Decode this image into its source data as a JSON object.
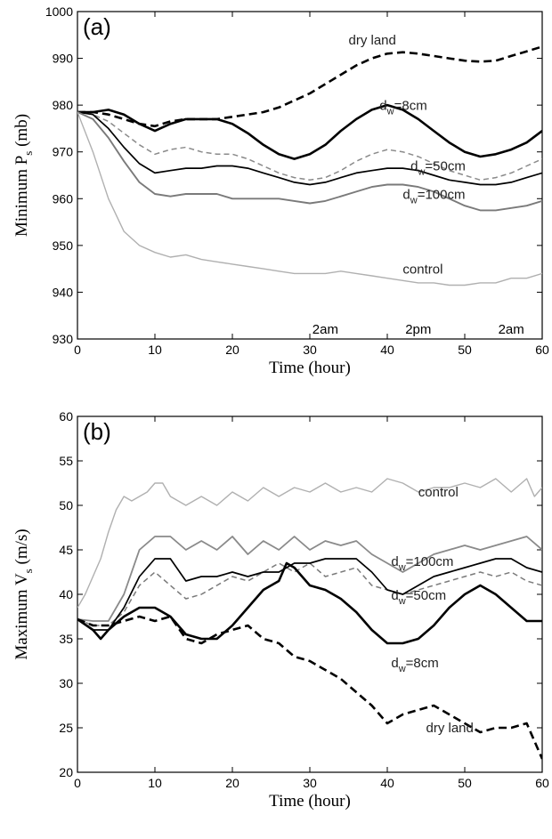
{
  "chart_data": [
    {
      "type": "line",
      "panel_label": "(a)",
      "xlabel": "Time (hour)",
      "ylabel_main": "Minimum P",
      "ylabel_sub": "s",
      "ylabel_unit": " (mb)",
      "xlim": [
        0,
        60
      ],
      "ylim": [
        930,
        1000
      ],
      "xticks": [
        0,
        10,
        20,
        30,
        40,
        50,
        60
      ],
      "yticks": [
        930,
        940,
        950,
        960,
        970,
        980,
        990,
        1000
      ],
      "time_labels": [
        {
          "text": "2am",
          "x": 32
        },
        {
          "text": "2pm",
          "x": 44
        },
        {
          "text": "2am",
          "x": 56
        }
      ],
      "annotations": [
        {
          "series": "dry land",
          "text": "dry land",
          "x": 35,
          "y": 993
        },
        {
          "series": "dw8",
          "text": "d",
          "sub": "w",
          "rest": "=8cm",
          "x": 39,
          "y": 979
        },
        {
          "series": "dw50",
          "text": "d",
          "sub": "w",
          "rest": "=50cm",
          "x": 43,
          "y": 966
        },
        {
          "series": "dw100",
          "text": "d",
          "sub": "w",
          "rest": "=100cm",
          "x": 42,
          "y": 960
        },
        {
          "series": "control",
          "text": "control",
          "x": 42,
          "y": 944
        }
      ],
      "series": [
        {
          "id": "dry land",
          "color": "#000000",
          "width": 2.6,
          "dash": "9,5",
          "x": [
            0,
            2,
            4,
            6,
            8,
            10,
            12,
            14,
            16,
            18,
            20,
            22,
            24,
            26,
            28,
            30,
            32,
            34,
            36,
            38,
            40,
            42,
            44,
            46,
            48,
            50,
            52,
            54,
            56,
            58,
            60
          ],
          "y": [
            978.5,
            978.5,
            978,
            977,
            976,
            975.5,
            976.5,
            977,
            977,
            977,
            977.5,
            978,
            978.5,
            979.5,
            981,
            982.5,
            984.5,
            986.5,
            988.5,
            990,
            991,
            991.3,
            991,
            990.5,
            990,
            989.5,
            989.3,
            989.5,
            990.5,
            991.5,
            992.5
          ]
        },
        {
          "id": "dw8",
          "color": "#000000",
          "width": 2.6,
          "dash": "",
          "x": [
            0,
            2,
            4,
            6,
            8,
            10,
            12,
            14,
            16,
            18,
            20,
            22,
            24,
            26,
            28,
            30,
            32,
            34,
            36,
            38,
            40,
            42,
            44,
            46,
            48,
            50,
            52,
            54,
            56,
            58,
            60
          ],
          "y": [
            978.5,
            978.5,
            979,
            978,
            976,
            974.5,
            976,
            977,
            977,
            977,
            976,
            974,
            971.5,
            969.5,
            968.5,
            969.5,
            971.5,
            974.5,
            977,
            979,
            980,
            979,
            977,
            974.5,
            972,
            970,
            969,
            969.5,
            970.5,
            972,
            974.5
          ]
        },
        {
          "id": "dw50",
          "color": "#8a8a8a",
          "width": 1.5,
          "dash": "6,4",
          "x": [
            0,
            2,
            4,
            6,
            8,
            10,
            12,
            14,
            16,
            18,
            20,
            22,
            24,
            26,
            28,
            30,
            32,
            34,
            36,
            38,
            40,
            42,
            44,
            46,
            48,
            50,
            52,
            54,
            56,
            58,
            60
          ],
          "y": [
            978.5,
            978,
            976.5,
            974,
            971.5,
            969.5,
            970.5,
            971,
            970,
            969.5,
            969.5,
            968.5,
            967,
            965.5,
            964.5,
            964,
            964.5,
            966,
            968,
            969.5,
            970.5,
            970,
            969,
            967.5,
            966,
            965,
            964,
            964.5,
            965.5,
            967,
            968.5
          ]
        },
        {
          "id": "dw100",
          "color": "#000000",
          "width": 1.7,
          "dash": "",
          "x": [
            0,
            2,
            4,
            6,
            8,
            10,
            12,
            14,
            16,
            18,
            20,
            22,
            24,
            26,
            28,
            30,
            32,
            34,
            36,
            38,
            40,
            42,
            44,
            46,
            48,
            50,
            52,
            54,
            56,
            58,
            60
          ],
          "y": [
            978.5,
            978,
            975,
            971,
            967.5,
            965.5,
            966,
            966.5,
            966.5,
            967,
            967,
            966.5,
            965.5,
            964.5,
            963.5,
            963,
            963.5,
            964.5,
            965.5,
            966,
            966.5,
            966.5,
            966,
            965,
            964,
            963.5,
            963,
            963,
            963.5,
            964.5,
            965.5
          ]
        },
        {
          "id": "dw100_gray",
          "color": "#7a7a7a",
          "width": 1.9,
          "dash": "",
          "x": [
            0,
            2,
            4,
            6,
            8,
            10,
            12,
            14,
            16,
            18,
            20,
            22,
            24,
            26,
            28,
            30,
            32,
            34,
            36,
            38,
            40,
            42,
            44,
            46,
            48,
            50,
            52,
            54,
            56,
            58,
            60
          ],
          "y": [
            978.5,
            977,
            973,
            968,
            963.5,
            961,
            960.5,
            961,
            961,
            961,
            960,
            960,
            960,
            960,
            959.5,
            959,
            959.5,
            960.5,
            961.5,
            962.5,
            963,
            963,
            962.5,
            961.5,
            960,
            958.5,
            957.5,
            957.5,
            958,
            958.5,
            959.5
          ]
        },
        {
          "id": "control",
          "color": "#b0b0b0",
          "width": 1.4,
          "dash": "",
          "x": [
            0,
            2,
            4,
            6,
            8,
            10,
            12,
            14,
            16,
            18,
            20,
            22,
            24,
            26,
            28,
            30,
            32,
            34,
            36,
            38,
            40,
            42,
            44,
            46,
            48,
            50,
            52,
            54,
            56,
            58,
            60
          ],
          "y": [
            978.5,
            970,
            960,
            953,
            950,
            948.5,
            947.5,
            948,
            947,
            946.5,
            946,
            945.5,
            945,
            944.5,
            944,
            944,
            944,
            944.5,
            944,
            943.5,
            943,
            942.5,
            942,
            942,
            941.5,
            941.5,
            942,
            942,
            943,
            943,
            944
          ]
        }
      ]
    },
    {
      "type": "line",
      "panel_label": "(b)",
      "xlabel": "Time (hour)",
      "ylabel_main": "Maximum V",
      "ylabel_sub": "s",
      "ylabel_unit": " (m/s)",
      "xlim": [
        0,
        60
      ],
      "ylim": [
        20,
        60
      ],
      "xticks": [
        0,
        10,
        20,
        30,
        40,
        50,
        60
      ],
      "yticks": [
        20,
        25,
        30,
        35,
        40,
        45,
        50,
        55,
        60
      ],
      "time_labels": [],
      "annotations": [
        {
          "series": "control",
          "text": "control",
          "x": 44,
          "y": 51
        },
        {
          "series": "dw100",
          "text": "d",
          "sub": "w",
          "rest": "=100cm",
          "x": 40.5,
          "y": 43.2
        },
        {
          "series": "dw50",
          "text": "d",
          "sub": "w",
          "rest": "=50cm",
          "x": 40.5,
          "y": 39.4
        },
        {
          "series": "dw8",
          "text": "d",
          "sub": "w",
          "rest": "=8cm",
          "x": 40.5,
          "y": 31.8
        },
        {
          "series": "dry land",
          "text": "dry land",
          "x": 45,
          "y": 24.5
        }
      ],
      "series": [
        {
          "id": "control",
          "color": "#b0b0b0",
          "width": 1.4,
          "dash": "",
          "x": [
            0,
            1,
            2,
            3,
            4,
            5,
            6,
            7,
            8,
            9,
            10,
            11,
            12,
            14,
            16,
            18,
            20,
            22,
            24,
            26,
            28,
            30,
            32,
            34,
            36,
            38,
            40,
            42,
            44,
            46,
            48,
            50,
            52,
            54,
            56,
            58,
            59,
            60
          ],
          "y": [
            38.5,
            40,
            42,
            44,
            47,
            49.5,
            51,
            50.5,
            51,
            51.5,
            52.5,
            52.5,
            51,
            50,
            51,
            50,
            51.5,
            50.5,
            52,
            51,
            52,
            51.5,
            52.5,
            51.5,
            52,
            51.5,
            53,
            52.5,
            51.5,
            52,
            52,
            52.5,
            52,
            53,
            51.5,
            53,
            51,
            52
          ]
        },
        {
          "id": "dw100",
          "color": "#8a8a8a",
          "width": 1.8,
          "dash": "",
          "x": [
            0,
            2,
            4,
            6,
            8,
            10,
            12,
            14,
            16,
            18,
            20,
            22,
            24,
            26,
            28,
            30,
            32,
            34,
            36,
            38,
            40,
            42,
            44,
            46,
            48,
            50,
            52,
            54,
            56,
            58,
            60
          ],
          "y": [
            37.2,
            37,
            37,
            40,
            45,
            46.5,
            46.5,
            45,
            46,
            45,
            46.5,
            44.5,
            46,
            45,
            46.5,
            45,
            46,
            45.5,
            46,
            44.5,
            43.5,
            42.5,
            43.5,
            44.5,
            45,
            45.5,
            45,
            45.5,
            46,
            46.5,
            45
          ]
        },
        {
          "id": "dw50",
          "color": "#7a7a7a",
          "width": 1.5,
          "dash": "6,4",
          "x": [
            0,
            2,
            4,
            6,
            8,
            10,
            12,
            14,
            16,
            18,
            20,
            22,
            24,
            26,
            28,
            30,
            32,
            34,
            36,
            38,
            40,
            42,
            44,
            46,
            48,
            50,
            52,
            54,
            56,
            58,
            60
          ],
          "y": [
            37.2,
            36.5,
            36.5,
            38,
            41,
            42.5,
            41,
            39.5,
            40,
            41,
            42,
            41.5,
            42.5,
            43.5,
            42.5,
            43.5,
            42,
            42.5,
            43,
            41,
            40.5,
            40,
            40.5,
            41,
            41.5,
            42,
            42.5,
            42,
            42.5,
            41.5,
            41
          ]
        },
        {
          "id": "dw100_black",
          "color": "#000000",
          "width": 1.7,
          "dash": "",
          "x": [
            0,
            2,
            4,
            6,
            8,
            10,
            12,
            14,
            16,
            18,
            20,
            22,
            24,
            26,
            28,
            30,
            32,
            34,
            36,
            38,
            40,
            42,
            44,
            46,
            48,
            50,
            52,
            54,
            56,
            58,
            60
          ],
          "y": [
            37.2,
            36,
            36,
            38.5,
            42,
            44,
            44,
            41.5,
            42,
            42,
            42.5,
            42,
            42.5,
            42.5,
            43.5,
            43.5,
            44,
            44,
            44,
            42.5,
            40.5,
            40,
            41,
            42,
            42.5,
            43,
            43.5,
            44,
            44,
            43,
            42.5
          ]
        },
        {
          "id": "dw8",
          "color": "#000000",
          "width": 2.6,
          "dash": "",
          "x": [
            0,
            2,
            3,
            4,
            6,
            8,
            10,
            12,
            14,
            16,
            18,
            20,
            22,
            24,
            26,
            27,
            28,
            30,
            32,
            34,
            36,
            38,
            40,
            42,
            44,
            46,
            48,
            50,
            52,
            54,
            56,
            58,
            60
          ],
          "y": [
            37.2,
            36,
            35,
            36,
            37.5,
            38.5,
            38.5,
            37.5,
            35.5,
            35,
            35,
            36.5,
            38.5,
            40.5,
            41.5,
            43.5,
            43,
            41,
            40.5,
            39.5,
            38,
            36,
            34.5,
            34.5,
            35,
            36.5,
            38.5,
            40,
            41,
            40,
            38.5,
            37,
            37
          ]
        },
        {
          "id": "dry land",
          "color": "#000000",
          "width": 2.6,
          "dash": "9,5",
          "x": [
            0,
            2,
            4,
            6,
            8,
            10,
            12,
            14,
            16,
            18,
            20,
            22,
            24,
            26,
            28,
            30,
            32,
            34,
            36,
            38,
            40,
            42,
            44,
            46,
            48,
            50,
            52,
            54,
            56,
            58,
            60
          ],
          "y": [
            37.2,
            36.5,
            36.5,
            37,
            37.5,
            37,
            37.5,
            35,
            34.5,
            35.5,
            36,
            36.5,
            35,
            34.5,
            33,
            32.5,
            31.5,
            30.5,
            29,
            27.5,
            25.5,
            26.5,
            27,
            27.5,
            26.5,
            25.5,
            24.5,
            25,
            25,
            25.5,
            21.5
          ]
        }
      ]
    }
  ]
}
